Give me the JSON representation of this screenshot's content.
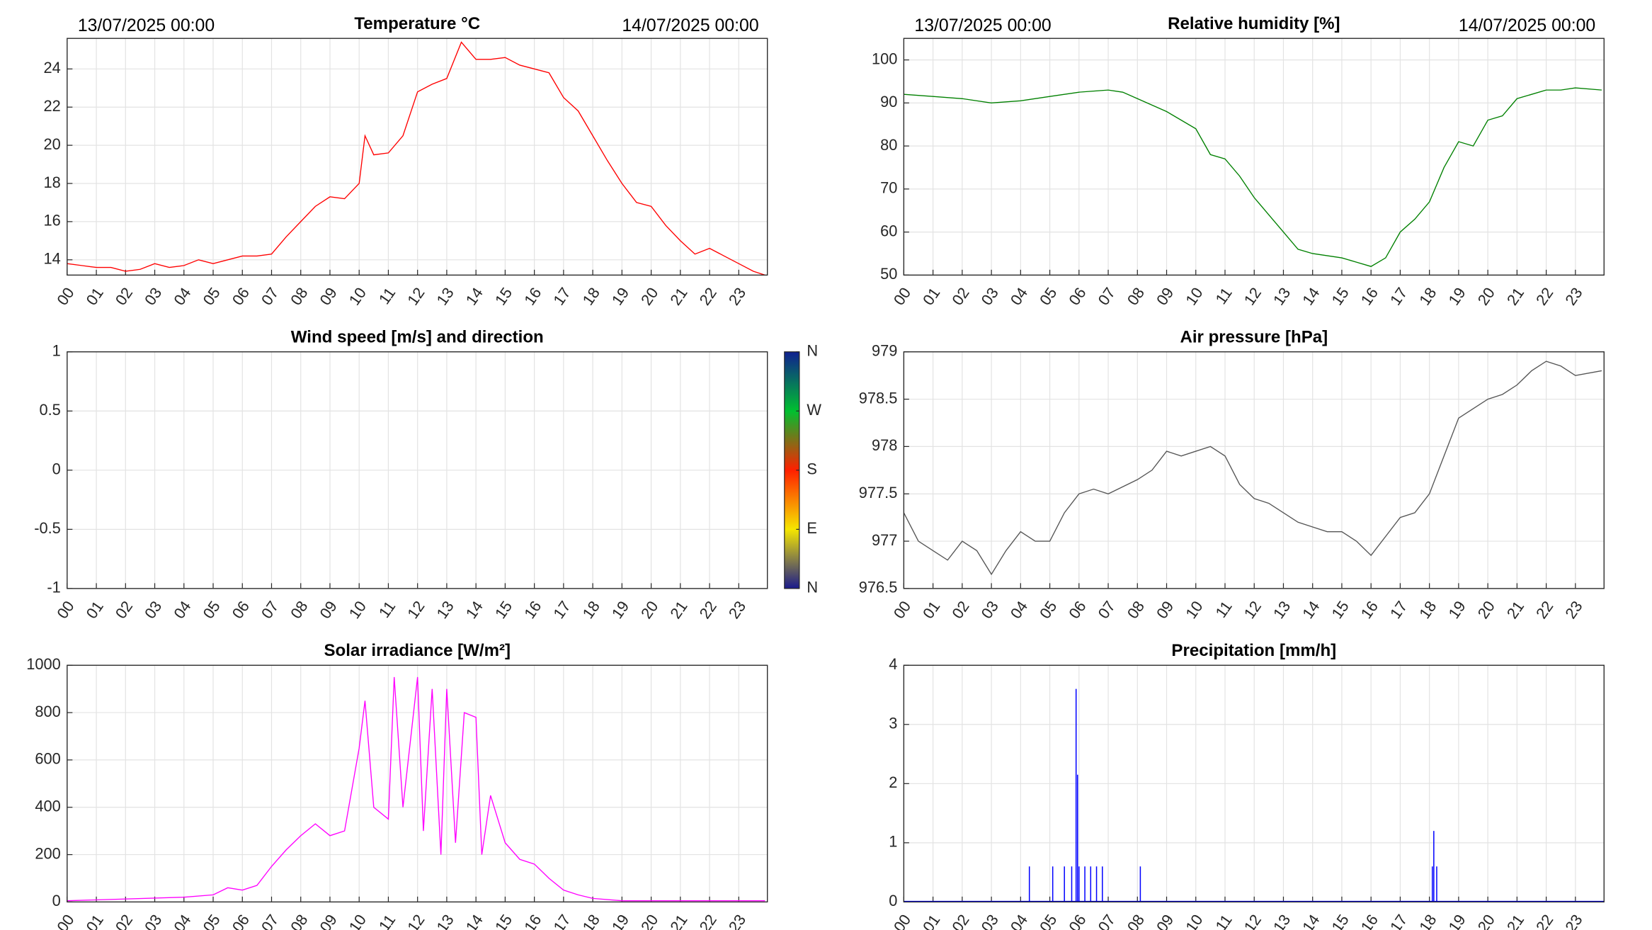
{
  "chart_data": [
    {
      "type": "line",
      "title": "Temperature °C",
      "start_label": "13/07/2025 00:00",
      "end_label": "14/07/2025 00:00",
      "x": [
        0,
        0.5,
        1,
        1.5,
        2,
        2.5,
        3,
        3.5,
        4,
        4.5,
        5,
        5.5,
        6,
        6.5,
        7,
        7.5,
        8,
        8.5,
        9,
        9.5,
        10,
        10.2,
        10.5,
        11,
        11.5,
        12,
        12.5,
        13,
        13.5,
        14,
        14.5,
        15,
        15.5,
        16,
        16.5,
        17,
        17.5,
        18,
        18.5,
        19,
        19.5,
        20,
        20.5,
        21,
        21.5,
        22,
        22.5,
        23,
        23.5,
        23.9
      ],
      "series": [
        {
          "color": "#ff0000",
          "values": [
            13.8,
            13.7,
            13.6,
            13.6,
            13.4,
            13.5,
            13.8,
            13.6,
            13.7,
            14.0,
            13.8,
            14.0,
            14.2,
            14.2,
            14.3,
            15.2,
            16.0,
            16.8,
            17.3,
            17.2,
            18.0,
            20.5,
            19.5,
            19.6,
            20.5,
            22.8,
            23.2,
            23.5,
            25.4,
            24.5,
            24.5,
            24.6,
            24.2,
            24.0,
            23.8,
            22.5,
            21.8,
            20.5,
            19.2,
            18.0,
            17.0,
            16.8,
            15.8,
            15.0,
            14.3,
            14.6,
            14.2,
            13.8,
            13.4,
            13.2
          ]
        }
      ],
      "xlim": [
        0,
        23.98
      ],
      "ylim": [
        13.2,
        25.6
      ],
      "yticks": [
        14,
        16,
        18,
        20,
        22,
        24
      ],
      "grid": true,
      "xticks": [
        {
          "value": 0,
          "label": "00"
        },
        {
          "value": 1,
          "label": "01"
        },
        {
          "value": 2,
          "label": "02"
        },
        {
          "value": 3,
          "label": "03"
        },
        {
          "value": 4,
          "label": "04"
        },
        {
          "value": 5,
          "label": "05"
        },
        {
          "value": 6,
          "label": "06"
        },
        {
          "value": 7,
          "label": "07"
        },
        {
          "value": 8,
          "label": "08"
        },
        {
          "value": 9,
          "label": "09"
        },
        {
          "value": 10,
          "label": "10"
        },
        {
          "value": 11,
          "label": "11"
        },
        {
          "value": 12,
          "label": "12"
        },
        {
          "value": 13,
          "label": "13"
        },
        {
          "value": 14,
          "label": "14"
        },
        {
          "value": 15,
          "label": "15"
        },
        {
          "value": 16,
          "label": "16"
        },
        {
          "value": 17,
          "label": "17"
        },
        {
          "value": 18,
          "label": "18"
        },
        {
          "value": 19,
          "label": "19"
        },
        {
          "value": 20,
          "label": "20"
        },
        {
          "value": 21,
          "label": "21"
        },
        {
          "value": 22,
          "label": "22"
        },
        {
          "value": 23,
          "label": "23"
        }
      ]
    },
    {
      "type": "line",
      "title": "Relative humidity [%]",
      "start_label": "13/07/2025 00:00",
      "end_label": "14/07/2025 00:00",
      "x": [
        0,
        1,
        2,
        3,
        4,
        5,
        6,
        7,
        7.5,
        8,
        9,
        10,
        10.5,
        11,
        11.5,
        12,
        12.5,
        13,
        13.5,
        14,
        15,
        15.5,
        16,
        16.5,
        17,
        17.5,
        18,
        18.5,
        19,
        19.5,
        20,
        20.5,
        21,
        22,
        22.5,
        23,
        23.9
      ],
      "series": [
        {
          "color": "#008000",
          "values": [
            92,
            91.5,
            91,
            90,
            90.5,
            91.5,
            92.5,
            93,
            92.5,
            91,
            88,
            84,
            78,
            77,
            73,
            68,
            64,
            60,
            56,
            55,
            54,
            53,
            52,
            54,
            60,
            63,
            67,
            75,
            81,
            80,
            86,
            87,
            91,
            93,
            93,
            93.5,
            93
          ]
        }
      ],
      "xlim": [
        0,
        23.98
      ],
      "ylim": [
        50,
        105
      ],
      "yticks": [
        50,
        60,
        70,
        80,
        90,
        100
      ],
      "grid": true,
      "xticks": [
        {
          "value": 0,
          "label": "00"
        },
        {
          "value": 1,
          "label": "01"
        },
        {
          "value": 2,
          "label": "02"
        },
        {
          "value": 3,
          "label": "03"
        },
        {
          "value": 4,
          "label": "04"
        },
        {
          "value": 5,
          "label": "05"
        },
        {
          "value": 6,
          "label": "06"
        },
        {
          "value": 7,
          "label": "07"
        },
        {
          "value": 8,
          "label": "08"
        },
        {
          "value": 9,
          "label": "09"
        },
        {
          "value": 10,
          "label": "10"
        },
        {
          "value": 11,
          "label": "11"
        },
        {
          "value": 12,
          "label": "12"
        },
        {
          "value": 13,
          "label": "13"
        },
        {
          "value": 14,
          "label": "14"
        },
        {
          "value": 15,
          "label": "15"
        },
        {
          "value": 16,
          "label": "16"
        },
        {
          "value": 17,
          "label": "17"
        },
        {
          "value": 18,
          "label": "18"
        },
        {
          "value": 19,
          "label": "19"
        },
        {
          "value": 20,
          "label": "20"
        },
        {
          "value": 21,
          "label": "21"
        },
        {
          "value": 22,
          "label": "22"
        },
        {
          "value": 23,
          "label": "23"
        }
      ]
    },
    {
      "type": "line",
      "title": "Wind speed [m/s] and direction",
      "x": [],
      "series": [],
      "xlim": [
        0,
        23.98
      ],
      "ylim": [
        -1,
        1
      ],
      "yticks": [
        -1,
        -0.5,
        0,
        0.5,
        1
      ],
      "grid": true,
      "colorbar": {
        "clim": [
          0,
          360
        ],
        "ticks": [
          {
            "value": 0,
            "label": "N"
          },
          {
            "value": 90,
            "label": "E"
          },
          {
            "value": 180,
            "label": "S"
          },
          {
            "value": 270,
            "label": "W"
          },
          {
            "value": 360,
            "label": "N"
          }
        ]
      },
      "xticks": [
        {
          "value": 0,
          "label": "00"
        },
        {
          "value": 1,
          "label": "01"
        },
        {
          "value": 2,
          "label": "02"
        },
        {
          "value": 3,
          "label": "03"
        },
        {
          "value": 4,
          "label": "04"
        },
        {
          "value": 5,
          "label": "05"
        },
        {
          "value": 6,
          "label": "06"
        },
        {
          "value": 7,
          "label": "07"
        },
        {
          "value": 8,
          "label": "08"
        },
        {
          "value": 9,
          "label": "09"
        },
        {
          "value": 10,
          "label": "10"
        },
        {
          "value": 11,
          "label": "11"
        },
        {
          "value": 12,
          "label": "12"
        },
        {
          "value": 13,
          "label": "13"
        },
        {
          "value": 14,
          "label": "14"
        },
        {
          "value": 15,
          "label": "15"
        },
        {
          "value": 16,
          "label": "16"
        },
        {
          "value": 17,
          "label": "17"
        },
        {
          "value": 18,
          "label": "18"
        },
        {
          "value": 19,
          "label": "19"
        },
        {
          "value": 20,
          "label": "20"
        },
        {
          "value": 21,
          "label": "21"
        },
        {
          "value": 22,
          "label": "22"
        },
        {
          "value": 23,
          "label": "23"
        }
      ]
    },
    {
      "type": "line",
      "title": "Air pressure [hPa]",
      "x": [
        0,
        0.5,
        1,
        1.5,
        2,
        2.5,
        3,
        3.5,
        4,
        4.5,
        5,
        5.5,
        6,
        6.5,
        7,
        8,
        8.5,
        9,
        9.5,
        10,
        10.5,
        11,
        11.5,
        12,
        12.5,
        13,
        13.5,
        14,
        14.5,
        15,
        15.5,
        16,
        16.5,
        17,
        17.5,
        18,
        18.5,
        19,
        19.5,
        20,
        20.5,
        21,
        21.5,
        22,
        22.5,
        23,
        23.9
      ],
      "series": [
        {
          "color": "#555555",
          "values": [
            977.3,
            977.0,
            976.9,
            976.8,
            977.0,
            976.9,
            976.65,
            976.9,
            977.1,
            977.0,
            977.0,
            977.3,
            977.5,
            977.55,
            977.5,
            977.65,
            977.75,
            977.95,
            977.9,
            977.95,
            978.0,
            977.9,
            977.6,
            977.45,
            977.4,
            977.3,
            977.2,
            977.15,
            977.1,
            977.1,
            977.0,
            976.85,
            977.05,
            977.25,
            977.3,
            977.5,
            977.9,
            978.3,
            978.4,
            978.5,
            978.55,
            978.65,
            978.8,
            978.9,
            978.85,
            978.75,
            978.8
          ]
        }
      ],
      "xlim": [
        0,
        23.98
      ],
      "ylim": [
        976.5,
        979
      ],
      "yticks": [
        976.5,
        977,
        977.5,
        978,
        978.5,
        979
      ],
      "grid": true,
      "xticks": [
        {
          "value": 0,
          "label": "00"
        },
        {
          "value": 1,
          "label": "01"
        },
        {
          "value": 2,
          "label": "02"
        },
        {
          "value": 3,
          "label": "03"
        },
        {
          "value": 4,
          "label": "04"
        },
        {
          "value": 5,
          "label": "05"
        },
        {
          "value": 6,
          "label": "06"
        },
        {
          "value": 7,
          "label": "07"
        },
        {
          "value": 8,
          "label": "08"
        },
        {
          "value": 9,
          "label": "09"
        },
        {
          "value": 10,
          "label": "10"
        },
        {
          "value": 11,
          "label": "11"
        },
        {
          "value": 12,
          "label": "12"
        },
        {
          "value": 13,
          "label": "13"
        },
        {
          "value": 14,
          "label": "14"
        },
        {
          "value": 15,
          "label": "15"
        },
        {
          "value": 16,
          "label": "16"
        },
        {
          "value": 17,
          "label": "17"
        },
        {
          "value": 18,
          "label": "18"
        },
        {
          "value": 19,
          "label": "19"
        },
        {
          "value": 20,
          "label": "20"
        },
        {
          "value": 21,
          "label": "21"
        },
        {
          "value": 22,
          "label": "22"
        },
        {
          "value": 23,
          "label": "23"
        }
      ]
    },
    {
      "type": "line",
      "title": "Solar irradiance [W/m²]",
      "x": [
        0,
        4,
        5,
        5.5,
        6,
        6.5,
        7,
        7.5,
        8,
        8.5,
        9,
        9.5,
        10,
        10.2,
        10.5,
        11,
        11.2,
        11.5,
        12,
        12.2,
        12.5,
        12.8,
        13,
        13.3,
        13.6,
        14,
        14.2,
        14.5,
        15,
        15.5,
        16,
        16.5,
        17,
        17.5,
        18,
        19,
        23.9
      ],
      "series": [
        {
          "color": "#ff00ff",
          "values": [
            5,
            20,
            30,
            60,
            50,
            70,
            150,
            220,
            280,
            330,
            280,
            300,
            650,
            850,
            400,
            350,
            950,
            400,
            950,
            300,
            900,
            200,
            900,
            250,
            800,
            780,
            200,
            450,
            250,
            180,
            160,
            100,
            50,
            30,
            15,
            5,
            5
          ]
        }
      ],
      "xlim": [
        0,
        23.98
      ],
      "ylim": [
        0,
        1000
      ],
      "yticks": [
        0,
        200,
        400,
        600,
        800,
        1000
      ],
      "grid": true,
      "xticks": [
        {
          "value": 0,
          "label": "00"
        },
        {
          "value": 1,
          "label": "01"
        },
        {
          "value": 2,
          "label": "02"
        },
        {
          "value": 3,
          "label": "03"
        },
        {
          "value": 4,
          "label": "04"
        },
        {
          "value": 5,
          "label": "05"
        },
        {
          "value": 6,
          "label": "06"
        },
        {
          "value": 7,
          "label": "07"
        },
        {
          "value": 8,
          "label": "08"
        },
        {
          "value": 9,
          "label": "09"
        },
        {
          "value": 10,
          "label": "10"
        },
        {
          "value": 11,
          "label": "11"
        },
        {
          "value": 12,
          "label": "12"
        },
        {
          "value": 13,
          "label": "13"
        },
        {
          "value": 14,
          "label": "14"
        },
        {
          "value": 15,
          "label": "15"
        },
        {
          "value": 16,
          "label": "16"
        },
        {
          "value": 17,
          "label": "17"
        },
        {
          "value": 18,
          "label": "18"
        },
        {
          "value": 19,
          "label": "19"
        },
        {
          "value": 20,
          "label": "20"
        },
        {
          "value": 21,
          "label": "21"
        },
        {
          "value": 22,
          "label": "22"
        },
        {
          "value": 23,
          "label": "23"
        }
      ]
    },
    {
      "type": "stem",
      "title": "Precipitation [mm/h]",
      "x": [
        4.3,
        5.1,
        5.5,
        5.75,
        5.9,
        5.95,
        6.0,
        6.2,
        6.4,
        6.6,
        6.8,
        8.1,
        18.1,
        18.15,
        18.25
      ],
      "series": [
        {
          "color": "#0000ff",
          "values": [
            0.6,
            0.6,
            0.6,
            0.6,
            3.6,
            2.15,
            0.6,
            0.6,
            0.6,
            0.6,
            0.6,
            0.6,
            0.6,
            1.2,
            0.6
          ]
        }
      ],
      "xlim": [
        0,
        23.98
      ],
      "ylim": [
        0,
        4
      ],
      "yticks": [
        0,
        1,
        2,
        3,
        4
      ],
      "grid": true,
      "xticks": [
        {
          "value": 0,
          "label": "00"
        },
        {
          "value": 1,
          "label": "01"
        },
        {
          "value": 2,
          "label": "02"
        },
        {
          "value": 3,
          "label": "03"
        },
        {
          "value": 4,
          "label": "04"
        },
        {
          "value": 5,
          "label": "05"
        },
        {
          "value": 6,
          "label": "06"
        },
        {
          "value": 7,
          "label": "07"
        },
        {
          "value": 8,
          "label": "08"
        },
        {
          "value": 9,
          "label": "09"
        },
        {
          "value": 10,
          "label": "10"
        },
        {
          "value": 11,
          "label": "11"
        },
        {
          "value": 12,
          "label": "12"
        },
        {
          "value": 13,
          "label": "13"
        },
        {
          "value": 14,
          "label": "14"
        },
        {
          "value": 15,
          "label": "15"
        },
        {
          "value": 16,
          "label": "16"
        },
        {
          "value": 17,
          "label": "17"
        },
        {
          "value": 18,
          "label": "18"
        },
        {
          "value": 19,
          "label": "19"
        },
        {
          "value": 20,
          "label": "20"
        },
        {
          "value": 21,
          "label": "21"
        },
        {
          "value": 22,
          "label": "22"
        },
        {
          "value": 23,
          "label": "23"
        }
      ]
    }
  ]
}
